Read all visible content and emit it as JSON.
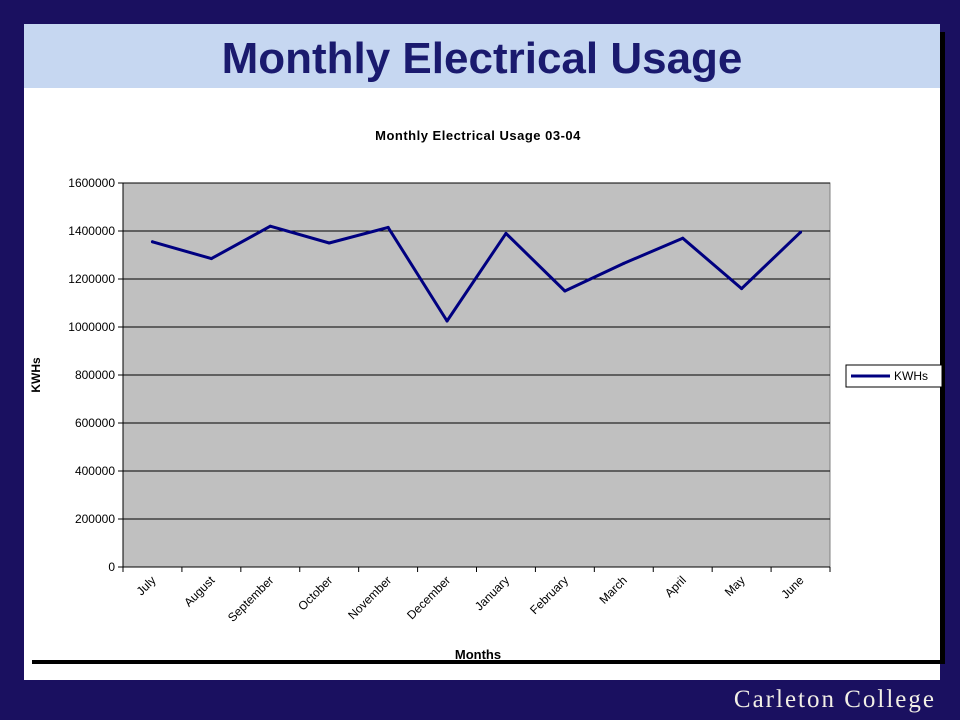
{
  "slide": {
    "title": "Monthly Electrical Usage",
    "footer": "Carleton College"
  },
  "chart_data": {
    "type": "line",
    "title": "Monthly Electrical Usage 03-04",
    "xlabel": "Months",
    "ylabel": "KWHs",
    "ylim": [
      0,
      1600000
    ],
    "yticks": [
      0,
      200000,
      400000,
      600000,
      800000,
      1000000,
      1200000,
      1400000,
      1600000
    ],
    "ytick_labels": [
      "0",
      "200000",
      "400000",
      "600000",
      "800000",
      "1000000",
      "1200000",
      "1400000",
      "1600000"
    ],
    "categories": [
      "July",
      "August",
      "September",
      "October",
      "November",
      "December",
      "January",
      "February",
      "March",
      "April",
      "May",
      "June"
    ],
    "series": [
      {
        "name": "KWHs",
        "color": "#000080",
        "values": [
          1355000,
          1285000,
          1420000,
          1350000,
          1415000,
          1025000,
          1390000,
          1150000,
          1265000,
          1370000,
          1160000,
          1395000
        ]
      }
    ],
    "grid": "horizontal",
    "plot_background": "#c0c0c0",
    "legend_position": "right"
  }
}
